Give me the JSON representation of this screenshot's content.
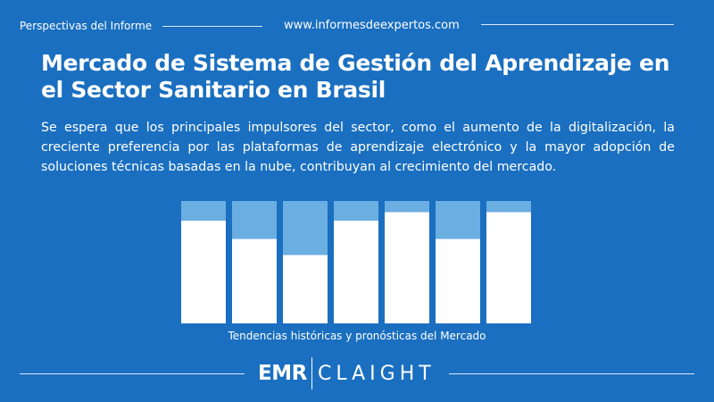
{
  "header": {
    "left_label": "Perspectivas del Informe",
    "site_url": "www.informesdeexpertos.com"
  },
  "title": "Mercado de Sistema de Gestión del Aprendizaje en el Sector Sanitario en Brasil",
  "description": "Se espera que los principales impulsores del sector, como el aumento de la digitalización, la creciente preferencia por las plataformas de aprendizaje electrónico y la mayor adopción de soluciones técnicas basadas en la nube, contribuyan al crecimiento del mercado.",
  "colors": {
    "background": "#1a6fc0",
    "bar_fill": "#ffffff",
    "bar_remainder": "#6aaee2"
  },
  "chart_data": {
    "type": "bar",
    "stacked": true,
    "categories": [
      "",
      "",
      "",
      "",
      "",
      "",
      ""
    ],
    "series": [
      {
        "values": [
          84,
          69,
          56,
          84,
          91,
          69,
          91
        ]
      },
      {
        "values": [
          16,
          31,
          44,
          16,
          9,
          31,
          9
        ]
      }
    ],
    "ylim": [
      0,
      100
    ],
    "grid": false,
    "caption": "Tendencias históricas y pronósticas del Mercado"
  },
  "footer": {
    "brand_left": "EMR",
    "brand_right": "CLAIGHT"
  }
}
